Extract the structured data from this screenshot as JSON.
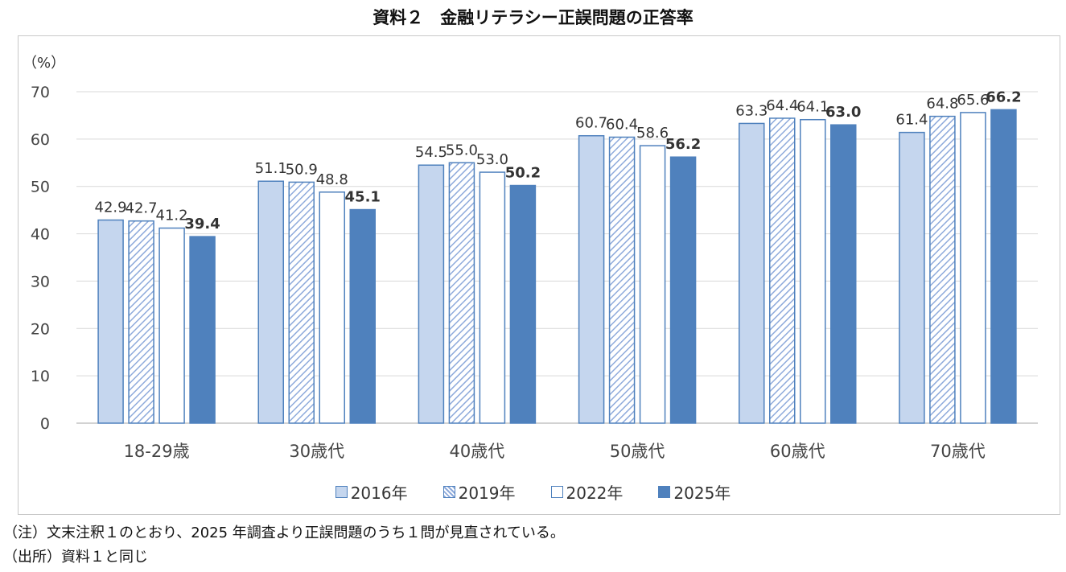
{
  "chart_data": {
    "type": "bar",
    "title": "資料２　金融リテラシー正誤問題の正答率",
    "ylabel": "（%）",
    "ylim": [
      0,
      70
    ],
    "yticks": [
      0,
      10,
      20,
      30,
      40,
      50,
      60,
      70
    ],
    "categories": [
      "18-29歳",
      "30歳代",
      "40歳代",
      "50歳代",
      "60歳代",
      "70歳代"
    ],
    "series": [
      {
        "name": "2016年",
        "values": [
          42.9,
          51.1,
          54.5,
          60.7,
          63.3,
          61.4
        ],
        "style": "light",
        "color": "#c5d6ee",
        "stroke": "#4f81bd"
      },
      {
        "name": "2019年",
        "values": [
          42.7,
          50.9,
          55.0,
          60.4,
          64.4,
          64.8
        ],
        "style": "hatch",
        "color": "#ffffff",
        "stroke": "#4f81bd"
      },
      {
        "name": "2022年",
        "values": [
          41.2,
          48.8,
          53.0,
          58.6,
          64.1,
          65.6
        ],
        "style": "outline",
        "color": "#ffffff",
        "stroke": "#4f81bd"
      },
      {
        "name": "2025年",
        "values": [
          39.4,
          45.1,
          50.2,
          56.2,
          63.0,
          66.2
        ],
        "style": "solid",
        "color": "#4f81bd",
        "stroke": "#4f81bd"
      }
    ],
    "legend_position": "bottom"
  },
  "notes": {
    "note": "（注）文末注釈１のとおり、2025 年調査より正誤問題のうち１問が見直されている。",
    "source": "（出所）資料１と同じ"
  }
}
